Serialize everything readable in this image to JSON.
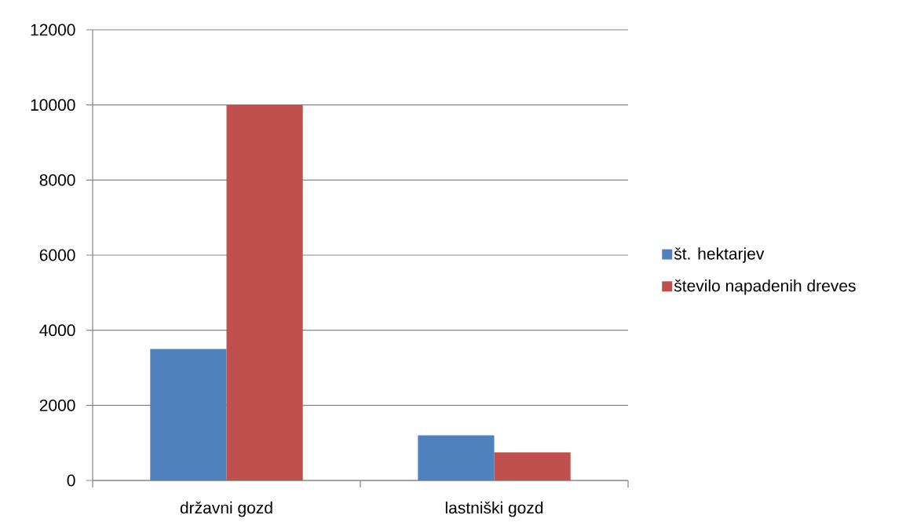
{
  "chart_data": {
    "type": "bar",
    "categories": [
      "državni gozd",
      "lastniški gozd"
    ],
    "series": [
      {
        "name": "št. hektarjev",
        "color": "#4f81bd",
        "values": [
          3500,
          1200
        ]
      },
      {
        "name": "število napadenih dreves",
        "color": "#c0504d",
        "values": [
          10000,
          750
        ]
      }
    ],
    "ylim": [
      0,
      12000
    ],
    "yticks": [
      0,
      2000,
      4000,
      6000,
      8000,
      10000,
      12000
    ],
    "grid": "y",
    "legend": "right"
  }
}
